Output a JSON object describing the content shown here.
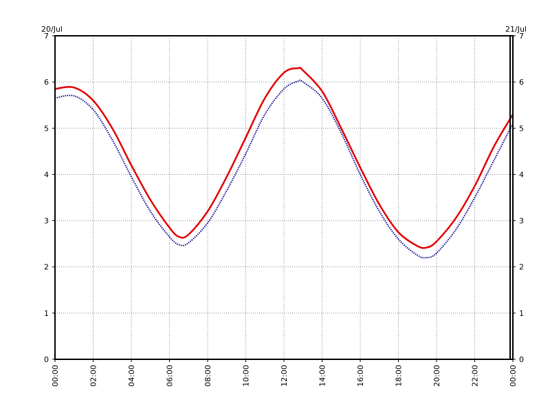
{
  "chart_data": {
    "type": "line",
    "title": "",
    "xlabel": "",
    "ylabel": "",
    "date_labels": {
      "start": "20/Jul",
      "end": "21/Jul"
    },
    "x_tick_labels": [
      "00:00",
      "02:00",
      "04:00",
      "06:00",
      "08:00",
      "10:00",
      "12:00",
      "14:00",
      "16:00",
      "18:00",
      "20:00",
      "22:00",
      "00:00"
    ],
    "x_tick_hours": [
      0,
      2,
      4,
      6,
      8,
      10,
      12,
      14,
      16,
      18,
      20,
      22,
      24
    ],
    "xlim": [
      0,
      24
    ],
    "y_ticks": [
      0,
      1,
      2,
      3,
      4,
      5,
      6,
      7
    ],
    "y_tick_labels": [
      "0",
      "1",
      "2",
      "3",
      "4",
      "5",
      "6",
      "7"
    ],
    "ylim": [
      0,
      7
    ],
    "grid": true,
    "x": [
      0,
      1,
      2,
      3,
      4,
      5,
      6,
      6.5,
      7,
      8,
      9,
      10,
      11,
      12,
      12.75,
      13,
      14,
      15,
      16,
      17,
      18,
      19,
      19.5,
      20,
      21,
      22,
      23,
      24
    ],
    "series": [
      {
        "name": "",
        "color": "#e00000",
        "style": "solid",
        "values": [
          5.85,
          5.88,
          5.6,
          5.0,
          4.2,
          3.45,
          2.85,
          2.65,
          2.7,
          3.2,
          3.95,
          4.8,
          5.65,
          6.2,
          6.3,
          6.25,
          5.8,
          5.0,
          4.15,
          3.35,
          2.75,
          2.45,
          2.42,
          2.55,
          3.05,
          3.75,
          4.6,
          5.3
        ]
      },
      {
        "name": "",
        "color": "#000090",
        "style": "dotted",
        "values": [
          5.65,
          5.7,
          5.4,
          4.75,
          3.95,
          3.2,
          2.65,
          2.48,
          2.52,
          2.95,
          3.65,
          4.45,
          5.3,
          5.85,
          6.02,
          6.0,
          5.65,
          4.9,
          4.0,
          3.2,
          2.6,
          2.25,
          2.2,
          2.3,
          2.8,
          3.5,
          4.3,
          5.1
        ]
      }
    ],
    "colors": {
      "grid": "#808080",
      "frame": "#000000"
    }
  }
}
